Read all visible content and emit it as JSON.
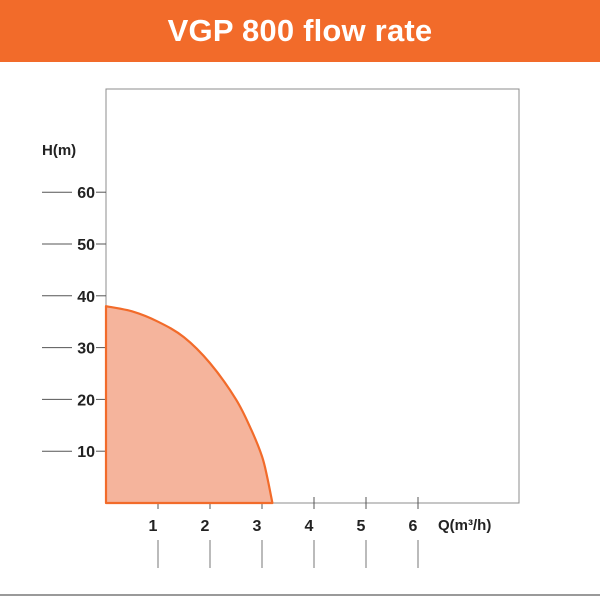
{
  "header": {
    "title": "VGP 800 flow rate",
    "background_color": "#f26b2a",
    "text_color": "#ffffff"
  },
  "chart_data": {
    "type": "area",
    "title": "VGP 800 flow rate",
    "xlabel": "Q(m³/h)",
    "ylabel": "H(m)",
    "xlim": [
      0,
      8
    ],
    "ylim": [
      0,
      80
    ],
    "x_ticks": [
      1,
      2,
      3,
      4,
      5,
      6
    ],
    "y_ticks": [
      10,
      20,
      30,
      40,
      50,
      60
    ],
    "grid": false,
    "legend": "none",
    "series": [
      {
        "x": [
          0,
          0.5,
          1.0,
          1.5,
          2.0,
          2.5,
          2.8,
          3.0,
          3.1,
          3.2
        ],
        "y": [
          38,
          37,
          35,
          32,
          27,
          20,
          14,
          9,
          5,
          0
        ],
        "fill_color": "#f5b49c",
        "line_color": "#f26b2a"
      }
    ]
  }
}
